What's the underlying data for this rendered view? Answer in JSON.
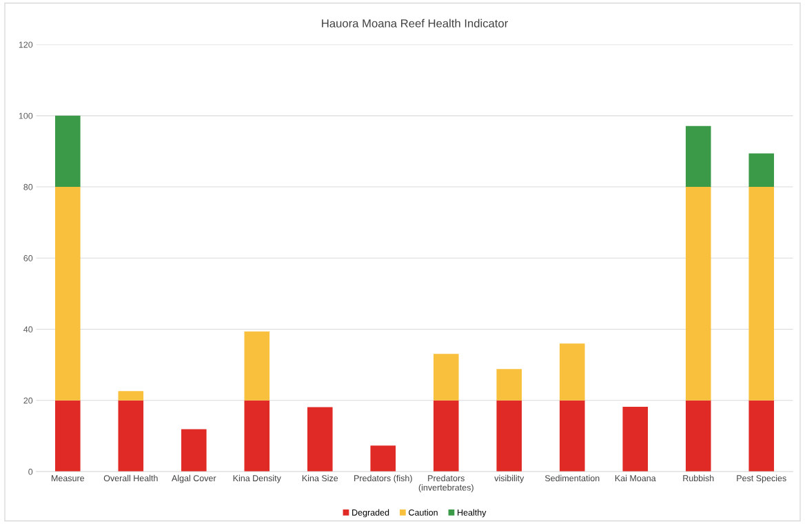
{
  "chart_data": {
    "type": "bar",
    "title": "Hauora Moana Reef Health Indicator",
    "stacked": true,
    "categories": [
      "Measure",
      "Overall Health",
      "Algal Cover",
      "Kina Density",
      "Kina Size",
      "Predators (fish)",
      "Predators (invertebrates)",
      "visibility",
      "Sedimentation",
      "Kai Moana",
      "Rubbish",
      "Pest Species"
    ],
    "series": [
      {
        "name": "Degraded",
        "color": "#e02a26",
        "values": [
          20,
          20,
          11.9,
          20,
          18.1,
          7.3,
          20,
          20,
          20,
          18.2,
          20,
          20
        ]
      },
      {
        "name": "Caution",
        "color": "#f8c03c",
        "values": [
          60,
          2.6,
          null,
          19.4,
          null,
          null,
          13.1,
          8.8,
          16.0,
          null,
          60,
          60
        ]
      },
      {
        "name": "Healthy",
        "color": "#3a9a48",
        "values": [
          20,
          null,
          null,
          null,
          null,
          null,
          null,
          null,
          null,
          null,
          17.1,
          9.4
        ]
      }
    ],
    "ylim": [
      0,
      120
    ],
    "yticks": [
      0,
      20,
      40,
      60,
      80,
      100,
      120
    ],
    "grid": "y",
    "legend": "bottom"
  }
}
